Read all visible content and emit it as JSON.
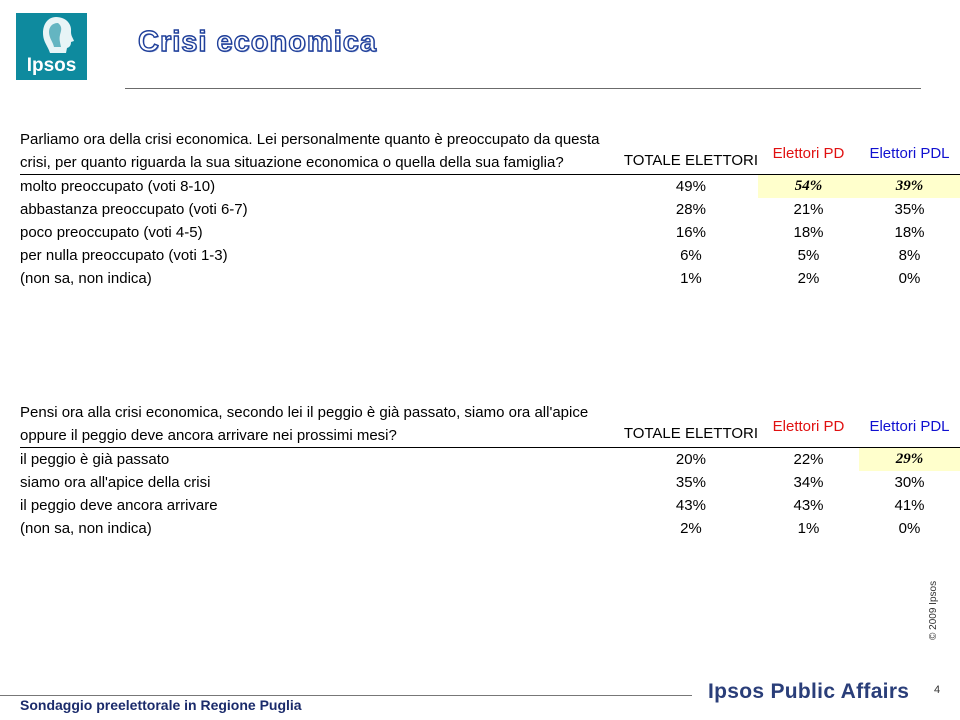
{
  "logo": {
    "text": "Ipsos"
  },
  "page_title": "Crisi economica",
  "columns": {
    "totale": "TOTALE ELETTORI",
    "pd": "Elettori PD",
    "pdl": "Elettori PDL"
  },
  "question1": {
    "text": "Parliamo ora della crisi economica. Lei personalmente quanto è preoccupato da questa crisi, per quanto riguarda la sua situazione economica o quella della sua famiglia?",
    "rows": [
      {
        "label": "molto preoccupato (voti 8-10)",
        "totale": "49%",
        "pd": "54%",
        "pdl": "39%"
      },
      {
        "label": "abbastanza preoccupato (voti 6-7)",
        "totale": "28%",
        "pd": "21%",
        "pdl": "35%"
      },
      {
        "label": "poco preoccupato (voti 4-5)",
        "totale": "16%",
        "pd": "18%",
        "pdl": "18%"
      },
      {
        "label": "per nulla preoccupato (voti 1-3)",
        "totale": "6%",
        "pd": "5%",
        "pdl": "8%"
      },
      {
        "label": "(non sa, non indica)",
        "totale": "1%",
        "pd": "2%",
        "pdl": "0%"
      }
    ]
  },
  "question2": {
    "text": "Pensi ora alla crisi economica, secondo lei il peggio è già passato, siamo ora all'apice oppure il peggio deve ancora arrivare nei prossimi mesi?",
    "rows": [
      {
        "label": "il peggio è già passato",
        "totale": "20%",
        "pd": "22%",
        "pdl": "29%"
      },
      {
        "label": "siamo ora all'apice della crisi",
        "totale": "35%",
        "pd": "34%",
        "pdl": "30%"
      },
      {
        "label": "il peggio deve ancora arrivare",
        "totale": "43%",
        "pd": "43%",
        "pdl": "41%"
      },
      {
        "label": "(non sa, non indica)",
        "totale": "2%",
        "pd": "1%",
        "pdl": "0%"
      }
    ]
  },
  "copyright": "© 2009 Ipsos",
  "footer": {
    "survey": "Sondaggio preelettorale in Regione Puglia",
    "brand": "Ipsos Public Affairs",
    "page": "4"
  },
  "colors": {
    "logo_bg": "#0e8a9e",
    "title": "#1f3f9a",
    "pd": "#e01010",
    "pdl": "#1010d0",
    "highlight": "#ffffcc"
  }
}
